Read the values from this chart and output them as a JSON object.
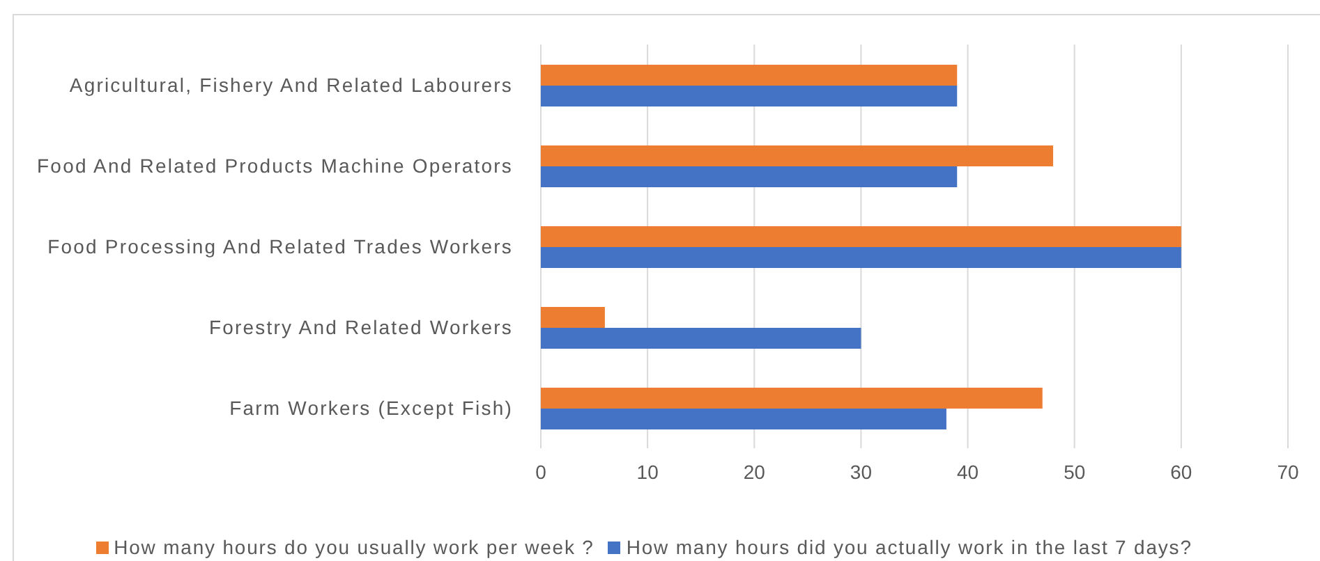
{
  "chart_data": {
    "type": "bar",
    "orientation": "horizontal",
    "categories": [
      "Agricultural, Fishery And Related Labourers",
      "Food And Related Products Machine Operators",
      "Food Processing And Related Trades Workers",
      "Forestry And Related Workers",
      "Farm Workers (Except Fish)"
    ],
    "series": [
      {
        "name": "How many hours do you usually work per week ?",
        "color": "#ed7d31",
        "values": [
          39,
          48,
          60,
          6,
          47
        ]
      },
      {
        "name": "How many hours did you actually work in the last 7 days?",
        "color": "#4472c4",
        "values": [
          39,
          39,
          60,
          30,
          38
        ]
      }
    ],
    "xlim": [
      0,
      70
    ],
    "xticks": [
      0,
      10,
      20,
      30,
      40,
      50,
      60,
      70
    ],
    "grid": "x",
    "legend": "bottom"
  }
}
